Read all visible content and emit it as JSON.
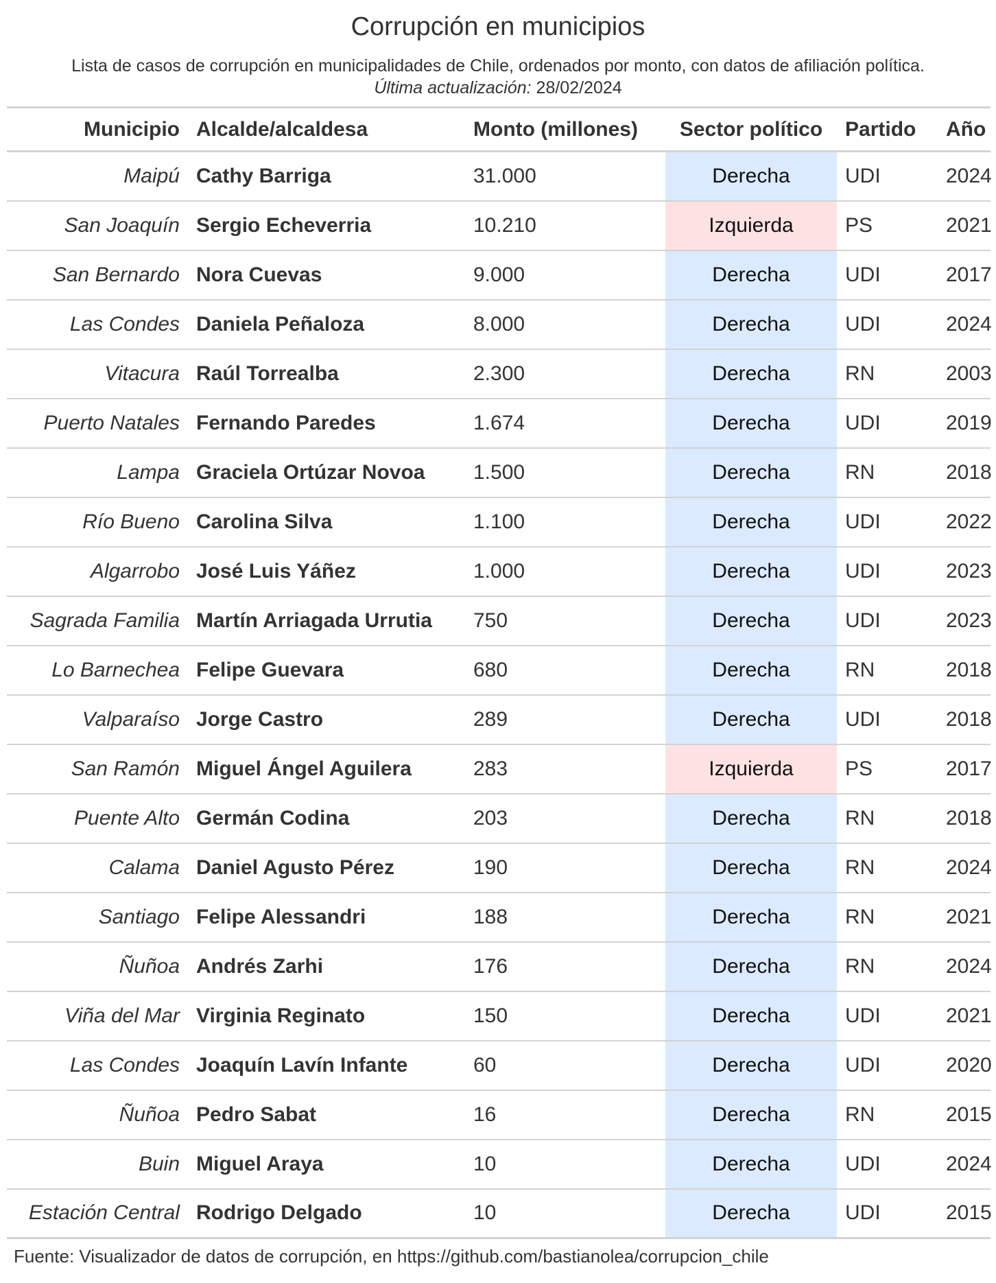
{
  "title": "Corrupción en municipios",
  "subtitle": "Lista de casos de corrupción en municipalidades de Chile, ordenados por monto, con datos de afiliación política.",
  "updated_label": "Última actualización:",
  "updated_date": "28/02/2024",
  "footer": "Fuente: Visualizador de datos de corrupción, en https://github.com/bastianolea/corrupcion_chile",
  "colors": {
    "Derecha": "#dbeafe",
    "Izquierda": "#fde2e4",
    "rule": "#d3d3d3"
  },
  "chart_data": {
    "type": "table",
    "columns": [
      "Municipio",
      "Alcalde/alcaldesa",
      "Monto (millones)",
      "Sector político",
      "Partido",
      "Año"
    ],
    "rows": [
      [
        "Maipú",
        "Cathy Barriga",
        "31.000",
        "Derecha",
        "UDI",
        "2024"
      ],
      [
        "San Joaquín",
        "Sergio Echeverria",
        "10.210",
        "Izquierda",
        "PS",
        "2021"
      ],
      [
        "San Bernardo",
        "Nora Cuevas",
        "9.000",
        "Derecha",
        "UDI",
        "2017"
      ],
      [
        "Las Condes",
        "Daniela Peñaloza",
        "8.000",
        "Derecha",
        "UDI",
        "2024"
      ],
      [
        "Vitacura",
        "Raúl Torrealba",
        "2.300",
        "Derecha",
        "RN",
        "2003"
      ],
      [
        "Puerto Natales",
        "Fernando Paredes",
        "1.674",
        "Derecha",
        "UDI",
        "2019"
      ],
      [
        "Lampa",
        "Graciela Ortúzar Novoa",
        "1.500",
        "Derecha",
        "RN",
        "2018"
      ],
      [
        "Río Bueno",
        "Carolina Silva",
        "1.100",
        "Derecha",
        "UDI",
        "2022"
      ],
      [
        "Algarrobo",
        "José Luis Yáñez",
        "1.000",
        "Derecha",
        "UDI",
        "2023"
      ],
      [
        "Sagrada Familia",
        "Martín Arriagada Urrutia",
        "750",
        "Derecha",
        "UDI",
        "2023"
      ],
      [
        "Lo Barnechea",
        "Felipe Guevara",
        "680",
        "Derecha",
        "RN",
        "2018"
      ],
      [
        "Valparaíso",
        "Jorge Castro",
        "289",
        "Derecha",
        "UDI",
        "2018"
      ],
      [
        "San Ramón",
        "Miguel Ángel Aguilera",
        "283",
        "Izquierda",
        "PS",
        "2017"
      ],
      [
        "Puente Alto",
        "Germán Codina",
        "203",
        "Derecha",
        "RN",
        "2018"
      ],
      [
        "Calama",
        "Daniel Agusto Pérez",
        "190",
        "Derecha",
        "RN",
        "2024"
      ],
      [
        "Santiago",
        "Felipe Alessandri",
        "188",
        "Derecha",
        "RN",
        "2021"
      ],
      [
        "Ñuñoa",
        "Andrés Zarhi",
        "176",
        "Derecha",
        "RN",
        "2024"
      ],
      [
        "Viña del Mar",
        "Virginia Reginato",
        "150",
        "Derecha",
        "UDI",
        "2021"
      ],
      [
        "Las Condes",
        "Joaquín Lavín Infante",
        "60",
        "Derecha",
        "UDI",
        "2020"
      ],
      [
        "Ñuñoa",
        "Pedro Sabat",
        "16",
        "Derecha",
        "RN",
        "2015"
      ],
      [
        "Buin",
        "Miguel Araya",
        "10",
        "Derecha",
        "UDI",
        "2024"
      ],
      [
        "Estación Central",
        "Rodrigo Delgado",
        "10",
        "Derecha",
        "UDI",
        "2015"
      ]
    ]
  }
}
